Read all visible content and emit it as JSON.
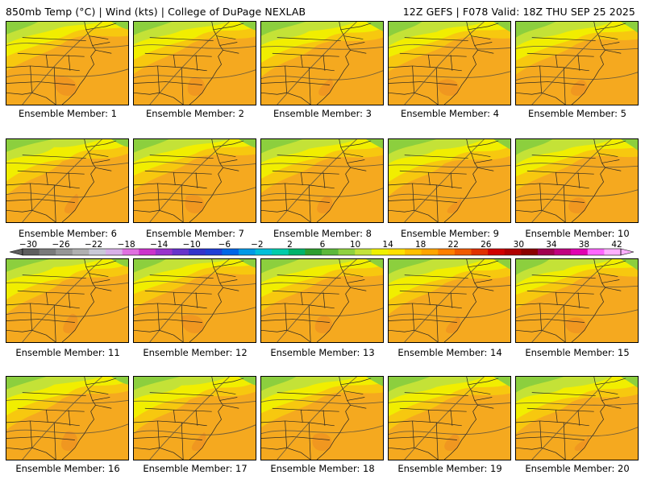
{
  "header": {
    "left": "850mb Temp (°C) | Wind (kts) | College of DuPage NEXLAB",
    "right": "12Z GEFS | F078 Valid: 18Z THU SEP 25 2025"
  },
  "panels": [
    {
      "label": "Ensemble Member: 1"
    },
    {
      "label": "Ensemble Member: 2"
    },
    {
      "label": "Ensemble Member: 3"
    },
    {
      "label": "Ensemble Member: 4"
    },
    {
      "label": "Ensemble Member: 5"
    },
    {
      "label": "Ensemble Member: 6"
    },
    {
      "label": "Ensemble Member: 7"
    },
    {
      "label": "Ensemble Member: 8"
    },
    {
      "label": "Ensemble Member: 9"
    },
    {
      "label": "Ensemble Member: 10"
    },
    {
      "label": "Ensemble Member: 11"
    },
    {
      "label": "Ensemble Member: 12"
    },
    {
      "label": "Ensemble Member: 13"
    },
    {
      "label": "Ensemble Member: 14"
    },
    {
      "label": "Ensemble Member: 15"
    },
    {
      "label": "Ensemble Member: 16"
    },
    {
      "label": "Ensemble Member: 17"
    },
    {
      "label": "Ensemble Member: 18"
    },
    {
      "label": "Ensemble Member: 19"
    },
    {
      "label": "Ensemble Member: 20"
    }
  ],
  "colorbar": {
    "labels": [
      "−30",
      "−26",
      "−22",
      "−18",
      "−14",
      "−10",
      "−6",
      "−2",
      "2",
      "6",
      "10",
      "14",
      "18",
      "22",
      "26",
      "30",
      "34",
      "38",
      "42"
    ],
    "colors": [
      "#5e5e5e",
      "#7a7a7a",
      "#969696",
      "#b0b0b0",
      "#c9c9d9",
      "#d8b0e8",
      "#e070e0",
      "#cc33cc",
      "#9933cc",
      "#6633cc",
      "#3333cc",
      "#1f3fd6",
      "#0066e6",
      "#0099e6",
      "#00bfd9",
      "#00ccaa",
      "#00b36b",
      "#2e9e2e",
      "#5cb83a",
      "#8fd13f",
      "#c3e23a",
      "#f0f000",
      "#ffe000",
      "#ffc000",
      "#ffa500",
      "#ff7f00",
      "#f05a00",
      "#e03000",
      "#d00000",
      "#b00000",
      "#8b0000",
      "#a00050",
      "#c00080",
      "#e000b0",
      "#ff66ff",
      "#ffb0ff"
    ],
    "field_colors": {
      "warm": "#f5a91f",
      "mid": "#f7c80f",
      "yellow": "#f1ee00",
      "lime": "#c4e237",
      "green": "#8ccf3e",
      "dkgreen": "#6cbf3e",
      "orange2": "#ef9220"
    }
  }
}
